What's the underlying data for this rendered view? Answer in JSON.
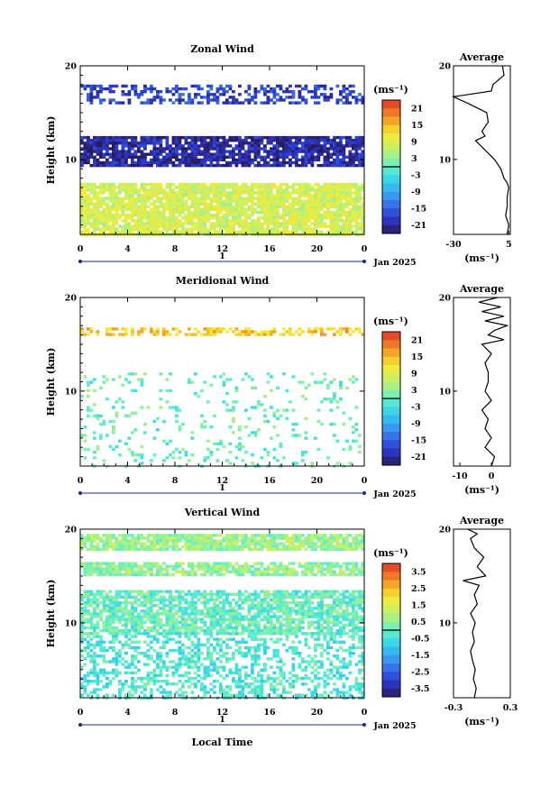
{
  "chart_data": [
    {
      "type": "heatmap",
      "title": "Zonal Wind",
      "ylabel": "Height (km)",
      "ylim": [
        2,
        20
      ],
      "y_ticks": [
        "10",
        "20"
      ],
      "xlim": [
        0,
        24
      ],
      "x_ticks": [
        "0",
        "4",
        "8",
        "12",
        "16",
        "20",
        "0"
      ],
      "date_label": "Jan 2025",
      "day_marker": "1",
      "colorbar": {
        "unit": "(ms⁻¹)",
        "ticks": [
          "21",
          "15",
          "9",
          "3",
          "-3",
          "-9",
          "-15",
          "-21"
        ],
        "range": [
          -24,
          24
        ]
      },
      "layers": [
        {
          "name": "upper",
          "y_range": [
            16.0,
            18.0
          ],
          "value": -18,
          "coverage": 0.45
        },
        {
          "name": "jet",
          "y_range": [
            9.5,
            12.5
          ],
          "value": -21,
          "coverage": 0.85
        },
        {
          "name": "lower",
          "y_range": [
            2.0,
            7.5
          ],
          "value": 8,
          "coverage": 0.9
        }
      ],
      "average_profile": {
        "title": "Average",
        "xlabel": "(ms⁻¹)",
        "x_ticks": [
          "-30",
          "5"
        ],
        "xlim": [
          -30,
          6
        ],
        "heights": [
          20,
          19,
          18,
          17.3,
          16.7,
          16,
          15,
          14,
          13,
          12.5,
          12,
          11,
          10,
          9,
          8,
          7.5,
          7,
          6,
          5,
          4,
          3,
          2
        ],
        "values": [
          1,
          2,
          -5,
          -6,
          -30,
          -21,
          -9,
          -8,
          -12,
          -10,
          -16,
          -10,
          -4,
          0,
          2,
          4,
          5,
          4,
          4,
          3,
          5,
          4
        ]
      }
    },
    {
      "type": "heatmap",
      "title": "Meridional Wind",
      "ylabel": "Height (km)",
      "ylim": [
        2,
        20
      ],
      "y_ticks": [
        "10",
        "20"
      ],
      "xlim": [
        0,
        24
      ],
      "x_ticks": [
        "0",
        "4",
        "8",
        "12",
        "16",
        "20",
        "0"
      ],
      "date_label": "Jan 2025",
      "day_marker": "1",
      "colorbar": {
        "unit": "(ms⁻¹)",
        "ticks": [
          "21",
          "15",
          "9",
          "3",
          "-3",
          "-9",
          "-15",
          "-21"
        ],
        "range": [
          -24,
          24
        ]
      },
      "layers": [
        {
          "name": "upper",
          "y_range": [
            16.2,
            16.8
          ],
          "value": 14,
          "coverage": 0.55
        },
        {
          "name": "scattered",
          "y_range": [
            2.0,
            12.0
          ],
          "value": 0,
          "coverage": 0.12
        }
      ],
      "average_profile": {
        "title": "Average",
        "xlabel": "(ms⁻¹)",
        "x_ticks": [
          "-10",
          "0"
        ],
        "xlim": [
          -12,
          6
        ],
        "heights": [
          20,
          19.5,
          19,
          18.5,
          18,
          17.5,
          17,
          16.5,
          16,
          15.5,
          15,
          14,
          13,
          12,
          11,
          10,
          9,
          8,
          7,
          6,
          5,
          4,
          3,
          2
        ],
        "values": [
          2,
          -4,
          3,
          -3,
          4,
          -2,
          5,
          1,
          -1,
          4,
          -3,
          0,
          -2,
          -1,
          -1,
          -2,
          0,
          -3,
          -1,
          -2,
          0,
          -2,
          1,
          0
        ]
      }
    },
    {
      "type": "heatmap",
      "title": "Vertical Wind",
      "ylabel": "Height (km)",
      "xlabel": "Local Time",
      "ylim": [
        2,
        20
      ],
      "y_ticks": [
        "10",
        "20"
      ],
      "xlim": [
        0,
        24
      ],
      "x_ticks": [
        "0",
        "4",
        "8",
        "12",
        "16",
        "20",
        "0"
      ],
      "date_label": "Jan 2025",
      "day_marker": "1",
      "colorbar": {
        "unit": "(ms⁻¹)",
        "ticks": [
          "3.5",
          "2.5",
          "1.5",
          "0.5",
          "-0.5",
          "-1.5",
          "-2.5",
          "-3.5"
        ],
        "range": [
          -4,
          4
        ]
      },
      "layers": [
        {
          "name": "top",
          "y_range": [
            18.0,
            19.5
          ],
          "value": 0.6,
          "coverage": 0.85
        },
        {
          "name": "upper",
          "y_range": [
            15.3,
            16.5
          ],
          "value": 0.5,
          "coverage": 0.8
        },
        {
          "name": "middle",
          "y_range": [
            9.0,
            13.5
          ],
          "value": 0.0,
          "coverage": 0.75
        },
        {
          "name": "lower",
          "y_range": [
            2.0,
            9.0
          ],
          "value": -0.3,
          "coverage": 0.45
        }
      ],
      "average_profile": {
        "title": "Average",
        "xlabel": "(ms⁻¹)",
        "x_ticks": [
          "-0.3",
          "0.3"
        ],
        "xlim": [
          -0.3,
          0.3
        ],
        "heights": [
          20,
          19.5,
          19,
          18,
          17,
          16,
          15,
          14.5,
          14,
          13,
          12,
          11,
          10,
          9,
          8,
          7,
          6,
          5,
          4,
          3,
          2
        ],
        "values": [
          -0.15,
          -0.05,
          -0.12,
          -0.08,
          0.02,
          -0.05,
          0.04,
          -0.2,
          -0.03,
          -0.08,
          -0.05,
          -0.12,
          -0.07,
          -0.1,
          -0.08,
          -0.12,
          -0.1,
          -0.07,
          -0.09,
          -0.06,
          -0.08
        ]
      }
    }
  ]
}
